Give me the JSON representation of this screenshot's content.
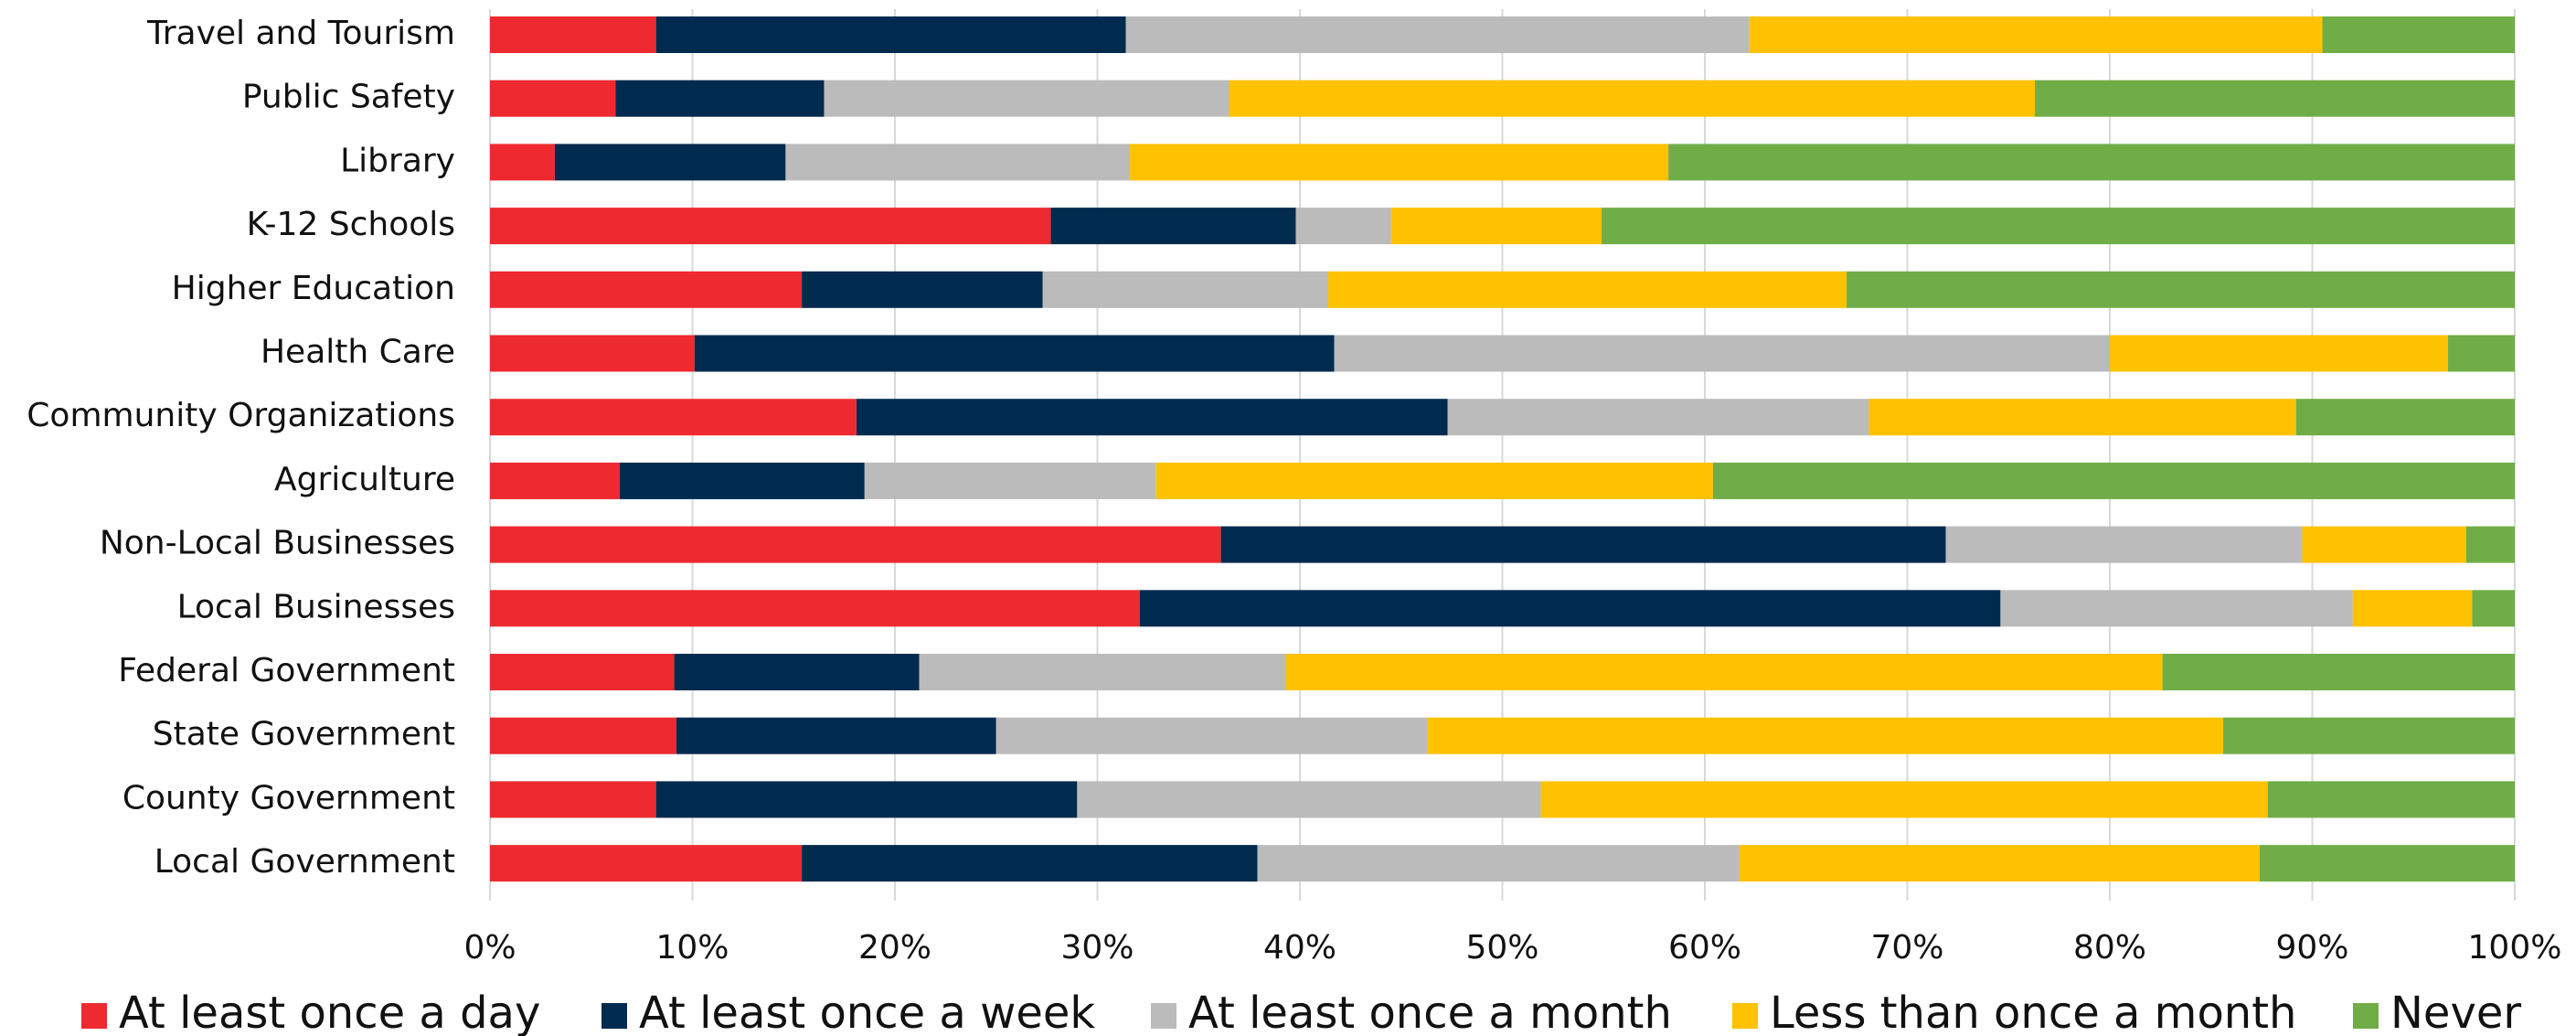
{
  "chart_data": {
    "type": "stacked_barh",
    "categories": [
      "Travel and Tourism",
      "Public Safety",
      "Library",
      "K-12 Schools",
      "Higher Education",
      "Health Care",
      "Community Organizations",
      "Agriculture",
      "Non-Local Businesses",
      "Local Businesses",
      "Federal Government",
      "State Government",
      "County Government",
      "Local Government"
    ],
    "series": [
      {
        "name": "At least once a day",
        "color": "#ee2a30",
        "values": [
          8.2,
          6.2,
          3.2,
          27.7,
          15.4,
          10.1,
          18.1,
          6.4,
          36.1,
          32.1,
          9.1,
          9.2,
          8.2,
          15.4
        ]
      },
      {
        "name": "At least once a week",
        "color": "#002b4e",
        "values": [
          23.2,
          10.3,
          11.4,
          12.1,
          11.9,
          31.6,
          29.2,
          12.1,
          35.8,
          42.5,
          12.1,
          15.8,
          20.8,
          22.5
        ]
      },
      {
        "name": "At least once a month",
        "color": "#bbbbbb",
        "values": [
          30.8,
          20.0,
          17.0,
          4.7,
          14.1,
          38.3,
          20.8,
          14.4,
          17.6,
          17.4,
          18.1,
          21.3,
          22.9,
          23.8
        ]
      },
      {
        "name": "Less than once a month",
        "color": "#fec200",
        "values": [
          28.3,
          39.8,
          26.6,
          10.4,
          25.6,
          16.7,
          21.1,
          27.5,
          8.1,
          5.9,
          43.3,
          39.3,
          35.9,
          25.7
        ]
      },
      {
        "name": "Never",
        "color": "#70ad47",
        "values": [
          9.5,
          23.7,
          41.8,
          45.1,
          33.0,
          3.3,
          10.8,
          39.6,
          2.4,
          2.1,
          17.4,
          14.4,
          12.2,
          12.6
        ]
      }
    ],
    "xlim": [
      0,
      100
    ],
    "xticks": [
      {
        "value": 0,
        "label": "0%"
      },
      {
        "value": 10,
        "label": "10%"
      },
      {
        "value": 20,
        "label": "20%"
      },
      {
        "value": 30,
        "label": "30%"
      },
      {
        "value": 40,
        "label": "40%"
      },
      {
        "value": 50,
        "label": "50%"
      },
      {
        "value": 60,
        "label": "60%"
      },
      {
        "value": 70,
        "label": "70%"
      },
      {
        "value": 80,
        "label": "80%"
      },
      {
        "value": 90,
        "label": "90%"
      },
      {
        "value": 100,
        "label": "100%"
      }
    ],
    "grid": true,
    "legend": "bottom"
  }
}
